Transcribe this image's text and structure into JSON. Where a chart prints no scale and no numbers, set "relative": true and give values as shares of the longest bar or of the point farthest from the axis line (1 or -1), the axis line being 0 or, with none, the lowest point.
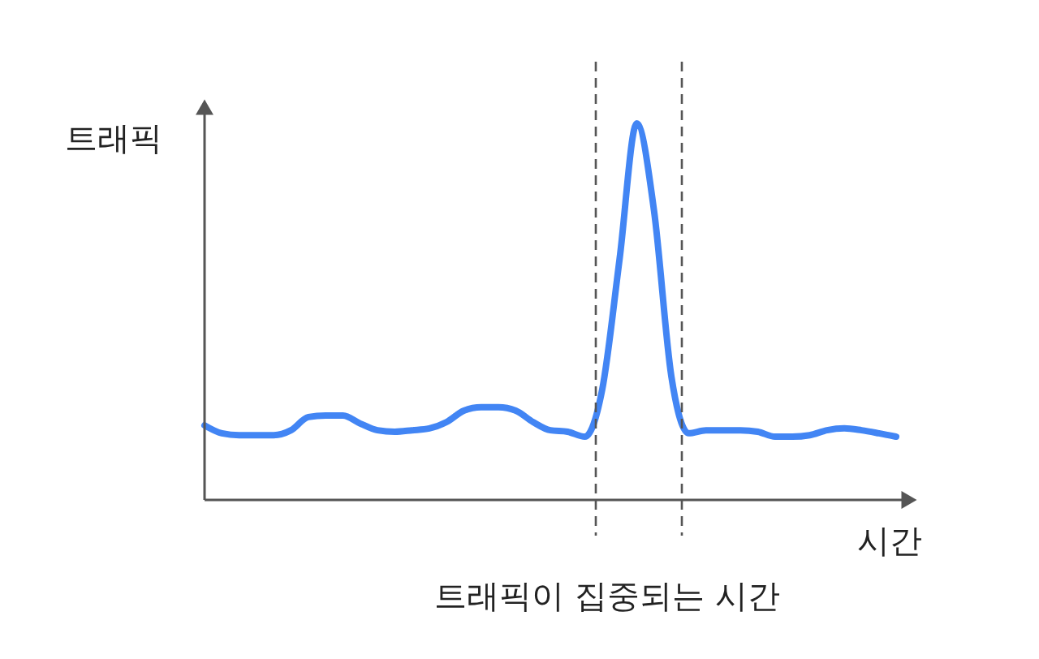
{
  "chart_data": {
    "type": "line",
    "relative": true,
    "xlabel": "시간",
    "ylabel": "트래픽",
    "categories": [
      null,
      null,
      null,
      null,
      null,
      null,
      null,
      null,
      null,
      null,
      null,
      null,
      null,
      null,
      null,
      null,
      null,
      null,
      null,
      null,
      null,
      null,
      null,
      null,
      null,
      null,
      null,
      null,
      null,
      null,
      null,
      null,
      null,
      null,
      null,
      null,
      null,
      null,
      null,
      null,
      null
    ],
    "series": [
      {
        "color": "#4285f4",
        "values": [
          0.198,
          0.177,
          0.172,
          0.172,
          0.172,
          0.185,
          0.22,
          0.224,
          0.224,
          0.203,
          0.185,
          0.181,
          0.185,
          0.19,
          0.207,
          0.237,
          0.246,
          0.246,
          0.237,
          0.207,
          0.185,
          0.181,
          0.168,
          0.293,
          0.638,
          1.0,
          0.767,
          0.328,
          0.177,
          0.185,
          0.185,
          0.185,
          0.181,
          0.168,
          0.168,
          0.172,
          0.185,
          0.19,
          0.185,
          0.177,
          0.168
        ]
      }
    ],
    "annotations": [
      "트래픽이 집중되는 시간"
    ],
    "grid": false,
    "marker": "none",
    "line_style": "solid"
  }
}
